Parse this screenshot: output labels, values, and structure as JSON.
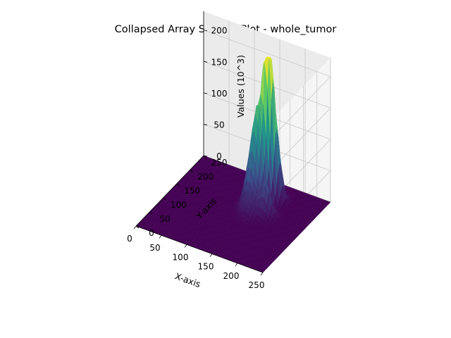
{
  "chart_data": {
    "type": "surface",
    "title": "Collapsed Array Surface Plot - whole_tumor",
    "xlabel": "X-axis",
    "ylabel": "Y-axis",
    "zlabel": "Values (10^3)",
    "xlim": [
      0,
      250
    ],
    "ylim": [
      0,
      250
    ],
    "zlim": [
      0,
      230
    ],
    "x_ticks": [
      0,
      50,
      100,
      150,
      200,
      250
    ],
    "y_ticks": [
      0,
      50,
      100,
      150,
      200,
      250
    ],
    "z_ticks": [
      0,
      50,
      100,
      150,
      200
    ],
    "x_tick_labels": [
      "0",
      "50",
      "100",
      "150",
      "200",
      "250"
    ],
    "y_tick_labels": [
      "0",
      "50",
      "100",
      "150",
      "200",
      "250"
    ],
    "z_tick_labels": [
      "0",
      "50",
      "100",
      "150",
      "200"
    ],
    "colormap": "viridis",
    "grid": true,
    "baseline_value": 0,
    "peaks": [
      {
        "x": 158,
        "y": 190,
        "value": 208
      },
      {
        "x": 150,
        "y": 178,
        "value": 115
      },
      {
        "x": 165,
        "y": 200,
        "value": 130
      },
      {
        "x": 145,
        "y": 165,
        "value": 85
      },
      {
        "x": 175,
        "y": 150,
        "value": 55
      },
      {
        "x": 140,
        "y": 150,
        "value": 35
      },
      {
        "x": 150,
        "y": 130,
        "value": 25
      }
    ],
    "colors": {
      "low": "#440154",
      "mid_low": "#3b528b",
      "mid": "#21918c",
      "mid_high": "#5ec962",
      "high": "#fde725"
    }
  }
}
